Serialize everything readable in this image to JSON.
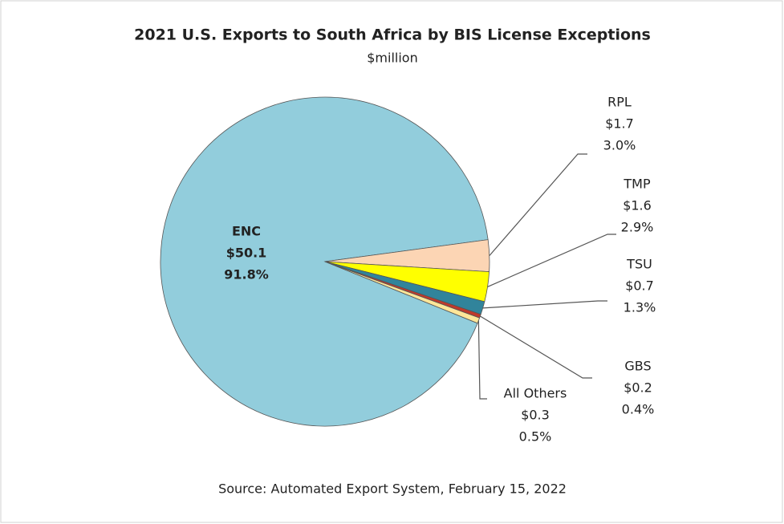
{
  "chart_data": {
    "type": "pie",
    "title": "2021 U.S. Exports to South Africa by BIS License Exceptions",
    "subtitle": "$million",
    "categories": [
      "ENC",
      "RPL",
      "TMP",
      "TSU",
      "GBS",
      "All Others"
    ],
    "values": [
      50.1,
      1.7,
      1.6,
      0.7,
      0.2,
      0.3
    ],
    "value_labels": [
      "$50.1",
      "$1.7",
      "$1.6",
      "$0.7",
      "$0.2",
      "$0.3"
    ],
    "percent_labels": [
      "91.8%",
      "3.0%",
      "2.9%",
      "1.3%",
      "0.4%",
      "0.5%"
    ],
    "colors": [
      "#92cddc",
      "#fcd5b4",
      "#ffff00",
      "#31849b",
      "#c0392b",
      "#ffe699"
    ],
    "source": "Source: Automated Export System, February 15, 2022"
  }
}
